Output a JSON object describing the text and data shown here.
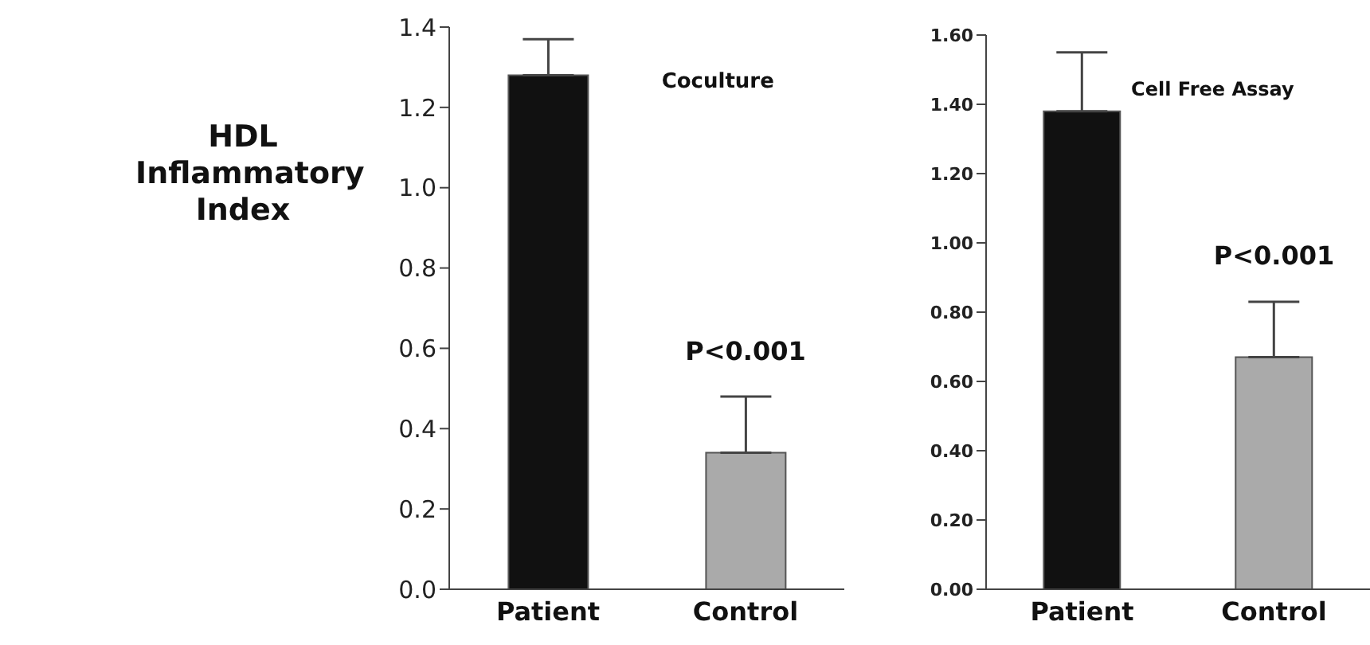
{
  "chart_data": [
    {
      "type": "bar",
      "title": "Coculture",
      "ylabel": "HDL Inflammatory Index",
      "categories": [
        "Patient",
        "Control"
      ],
      "values": [
        1.28,
        0.34
      ],
      "colors": [
        "#111111",
        "#aaaaaa"
      ],
      "errors": [
        [
          1.28,
          1.37
        ],
        [
          0.34,
          0.48
        ]
      ],
      "ylim": [
        0,
        1.4
      ],
      "yticks": [
        {
          "value": 0,
          "label": "0.0"
        },
        {
          "value": 0.2,
          "label": "0.2"
        },
        {
          "value": 0.4,
          "label": "0.4"
        },
        {
          "value": 0.6,
          "label": "0.6"
        },
        {
          "value": 0.8,
          "label": "0.8"
        },
        {
          "value": 1,
          "label": "1.0"
        },
        {
          "value": 1.2,
          "label": "1.2"
        },
        {
          "value": 1.4,
          "label": "1.4"
        }
      ],
      "annotations": [
        "P<0.001"
      ],
      "grid": false,
      "legend": false
    },
    {
      "type": "bar",
      "title": "Cell Free Assay",
      "categories": [
        "Patient",
        "Control"
      ],
      "values": [
        1.38,
        0.67
      ],
      "colors": [
        "#111111",
        "#aaaaaa"
      ],
      "errors": [
        [
          1.38,
          1.55
        ],
        [
          0.67,
          0.83
        ]
      ],
      "ylim": [
        0,
        1.6
      ],
      "yticks": [
        {
          "value": 0,
          "label": "0.00"
        },
        {
          "value": 0.2,
          "label": "0.20"
        },
        {
          "value": 0.4,
          "label": "0.40"
        },
        {
          "value": 0.6,
          "label": "0.60"
        },
        {
          "value": 0.8,
          "label": "0.80"
        },
        {
          "value": 1,
          "label": "1.00"
        },
        {
          "value": 1.2,
          "label": "1.20"
        },
        {
          "value": 1.4,
          "label": "1.40"
        },
        {
          "value": 1.6,
          "label": "1.60"
        }
      ],
      "annotations": [
        "P<0.001"
      ],
      "grid": false,
      "legend": false
    }
  ]
}
